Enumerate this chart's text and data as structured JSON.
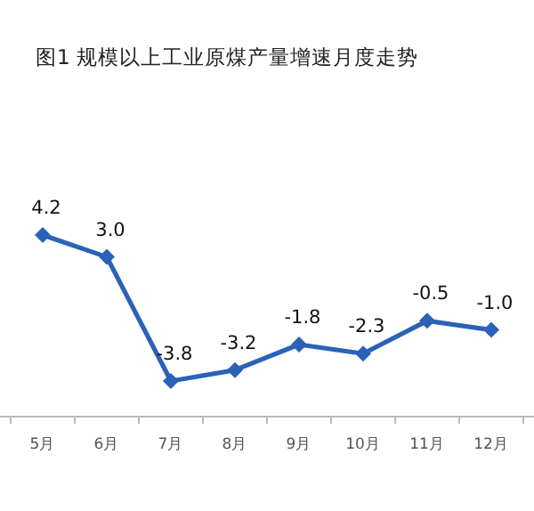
{
  "chart_data": {
    "type": "line",
    "title": "图1  规模以上工业原煤产量增速月度走势",
    "categories": [
      "5月",
      "6月",
      "7月",
      "8月",
      "9月",
      "10月",
      "11月",
      "12月"
    ],
    "values": [
      4.2,
      3.0,
      -3.8,
      -3.2,
      -1.8,
      -2.3,
      -0.5,
      -1.0
    ],
    "value_labels": [
      "4.2",
      "3.0",
      "-3.8",
      "-3.2",
      "-1.8",
      "-2.3",
      "-0.5",
      "-1.0"
    ],
    "color": "#2a62b8",
    "marker": "diamond"
  }
}
